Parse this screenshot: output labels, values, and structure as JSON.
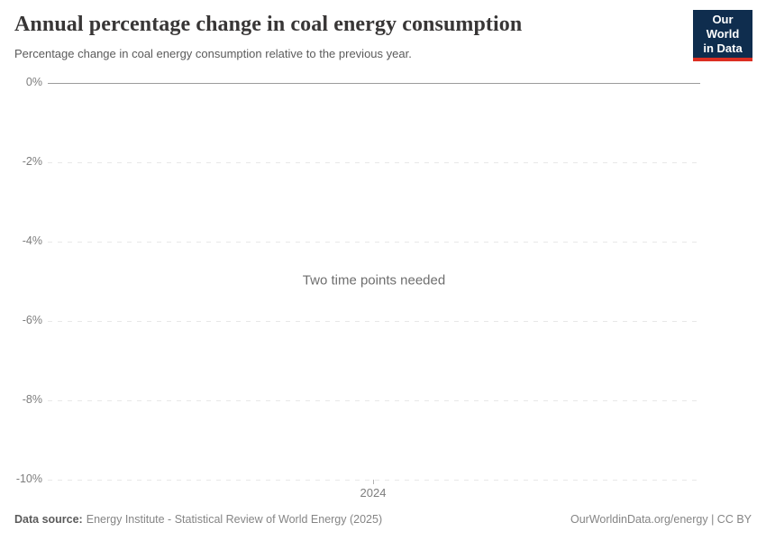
{
  "header": {
    "title": "Annual percentage change in coal energy consumption",
    "subtitle": "Percentage change in coal energy consumption relative to the previous year.",
    "logo": {
      "line1": "Our World",
      "line2": "in Data"
    }
  },
  "chart_data": {
    "type": "line",
    "title": "Annual percentage change in coal energy consumption",
    "subtitle": "Percentage change in coal energy consumption relative to the previous year.",
    "message": "Two time points needed",
    "series": [],
    "x": [],
    "x_tick_labels": [
      "2024"
    ],
    "y_tick_labels": [
      "0%",
      "-2%",
      "-4%",
      "-6%",
      "-8%",
      "-10%"
    ],
    "y_ticks": [
      0,
      -2,
      -4,
      -6,
      -8,
      -10
    ],
    "ylim": [
      -10,
      0
    ],
    "grid": true,
    "legend_position": "none",
    "note": "No data series plotted; placeholder message shown because two time points are required."
  },
  "footer": {
    "data_source_label": "Data source:",
    "data_source_value": "Energy Institute - Statistical Review of World Energy (2025)",
    "attribution": "OurWorldinData.org/energy | CC BY"
  },
  "colors": {
    "logo_background": "#0f2d4e",
    "logo_accent_red": "#dc2e22",
    "title_text": "#383636",
    "subtitle_text": "#5b5b5b",
    "tick_label_text": "#7d7d7d",
    "zero_axis_line": "#9b9b9b",
    "dashed_gridline": "#e8e8e8",
    "footer_text": "#858585",
    "message_text": "#6e6e6e"
  }
}
